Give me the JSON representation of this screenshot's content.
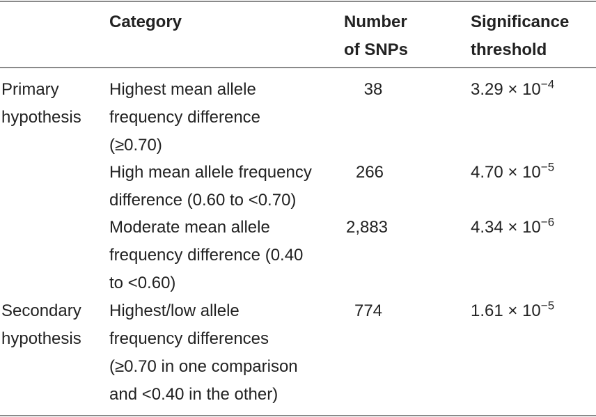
{
  "header": {
    "col_hypothesis": "",
    "col_category": "Category",
    "col_number_l1": "Number",
    "col_number_l2": "of SNPs",
    "col_threshold_l1": "Significance",
    "col_threshold_l2": "threshold"
  },
  "rows": [
    {
      "hypothesis": "Primary\nhypothesis",
      "category": "Highest mean allele\nfrequency difference\n(≥0.70)",
      "number": "38",
      "threshold_base": "3.29 × 10",
      "threshold_exp": "−4"
    },
    {
      "hypothesis": "",
      "category": "High mean allele frequency\ndifference (0.60 to <0.70)",
      "number": "266",
      "threshold_base": "4.70 × 10",
      "threshold_exp": "−5"
    },
    {
      "hypothesis": "",
      "category": "Moderate mean allele\nfrequency difference (0.40\nto <0.60)",
      "number": "2,883",
      "threshold_base": "4.34 × 10",
      "threshold_exp": "−6"
    },
    {
      "hypothesis": "Secondary\nhypothesis",
      "category": "Highest/low allele\nfrequency differences\n(≥0.70 in one comparison\nand <0.40 in the other)",
      "number": "774",
      "threshold_base": "1.61 × 10",
      "threshold_exp": "−5"
    }
  ]
}
